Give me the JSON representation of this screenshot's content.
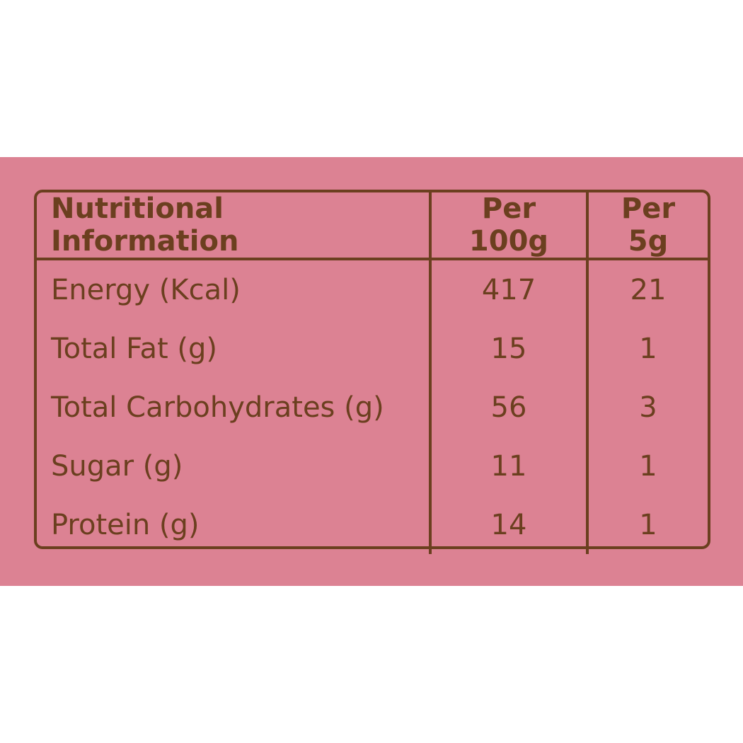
{
  "table": {
    "header": [
      "Nutritional Information",
      "Per 100g",
      "Per 5g"
    ],
    "rows": [
      [
        "Energy (Kcal)",
        417,
        21
      ],
      [
        "Total Fat (g)",
        15,
        1
      ],
      [
        "Total Carbohydrates (g)",
        56,
        3
      ],
      [
        "Sugar (g)",
        11,
        1
      ],
      [
        "Protein (g)",
        14,
        1
      ]
    ]
  }
}
